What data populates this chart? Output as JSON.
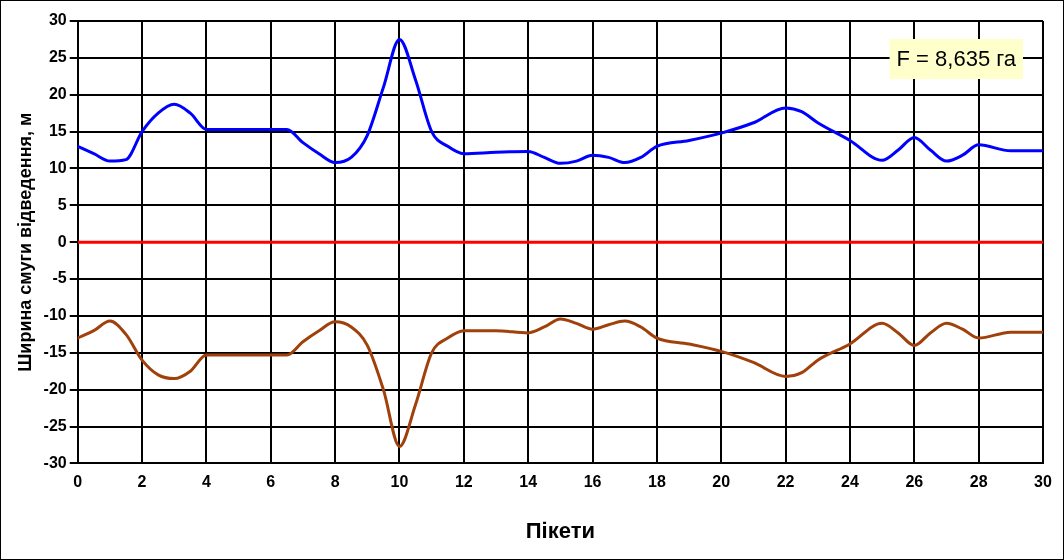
{
  "chart_data": {
    "type": "line",
    "xlabel": "Пікети",
    "ylabel": "Ширина смуги відведення, м",
    "xlim": [
      0,
      30
    ],
    "xticks": [
      0,
      2,
      4,
      6,
      8,
      10,
      12,
      14,
      16,
      18,
      20,
      22,
      24,
      26,
      28,
      30
    ],
    "ylim": [
      -30,
      30
    ],
    "yticks": [
      -30,
      -25,
      -20,
      -15,
      -10,
      -5,
      0,
      5,
      10,
      15,
      20,
      25,
      30
    ],
    "grid": true,
    "legend": false,
    "marker": "none",
    "line_style": "solid",
    "series": [
      {
        "color": "#0000ff",
        "x": [
          0,
          0.5,
          1,
          1.5,
          2,
          2.5,
          3,
          3.5,
          4,
          5,
          6,
          6.5,
          7,
          7.5,
          8,
          8.5,
          9,
          9.5,
          10,
          10.5,
          11,
          11.5,
          12,
          13,
          14,
          14.5,
          15,
          15.5,
          16,
          16.5,
          17,
          17.5,
          18,
          19,
          20,
          21,
          22,
          22.5,
          23,
          24,
          25,
          25.5,
          26,
          26.5,
          27,
          27.5,
          28,
          29,
          30
        ],
        "values": [
          13,
          12,
          11,
          11.2,
          15,
          17.5,
          18.7,
          17.5,
          15.3,
          15.3,
          15.3,
          15.3,
          13.5,
          12,
          10.8,
          11.5,
          14.5,
          21,
          27.5,
          22,
          15,
          13,
          12,
          12.2,
          12.3,
          11.5,
          10.7,
          11,
          11.8,
          11.5,
          10.8,
          11.5,
          13,
          13.8,
          14.8,
          16.2,
          18.2,
          17.7,
          16.2,
          13.8,
          11.1,
          12.5,
          14.2,
          12.5,
          11,
          11.8,
          13.2,
          12.4,
          12.4
        ]
      },
      {
        "color": "#a0400a",
        "x": [
          0,
          0.5,
          1,
          1.5,
          2,
          2.5,
          3,
          3.5,
          4,
          5,
          6,
          6.5,
          7,
          7.5,
          8,
          8.5,
          9,
          9.5,
          10,
          10.5,
          11,
          11.5,
          12,
          13,
          14,
          14.5,
          15,
          15.5,
          16,
          16.5,
          17,
          17.5,
          18,
          19,
          20,
          21,
          22,
          22.5,
          23,
          24,
          25,
          25.5,
          26,
          26.5,
          27,
          27.5,
          28,
          29,
          30
        ],
        "values": [
          -13,
          -12,
          -10.7,
          -12.5,
          -16,
          -18,
          -18.5,
          -17.5,
          -15.3,
          -15.3,
          -15.3,
          -15.3,
          -13.5,
          -12,
          -10.8,
          -11.5,
          -14,
          -20,
          -27.7,
          -22,
          -15,
          -13,
          -12,
          -12,
          -12.3,
          -11.5,
          -10.4,
          -11,
          -11.8,
          -11.2,
          -10.7,
          -11.5,
          -13,
          -13.8,
          -14.8,
          -16.3,
          -18.2,
          -17.7,
          -16,
          -13.8,
          -11,
          -12.3,
          -14,
          -12.3,
          -11,
          -11.8,
          -13,
          -12.2,
          -12.2
        ]
      }
    ],
    "ref_lines": [
      {
        "axis": "y",
        "value": 0,
        "color": "#ff0000"
      }
    ],
    "annotations": [
      "F = 8,635 га"
    ]
  }
}
